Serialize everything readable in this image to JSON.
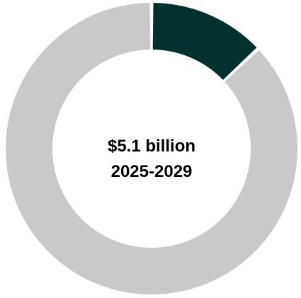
{
  "chart_data": {
    "type": "pie",
    "slices": [
      {
        "value": 13,
        "color": "#00312f"
      },
      {
        "value": 87,
        "color": "#c9c9c9"
      }
    ],
    "center_text": {
      "line1": "$5.1 billion",
      "line2": "2025-2029"
    }
  }
}
